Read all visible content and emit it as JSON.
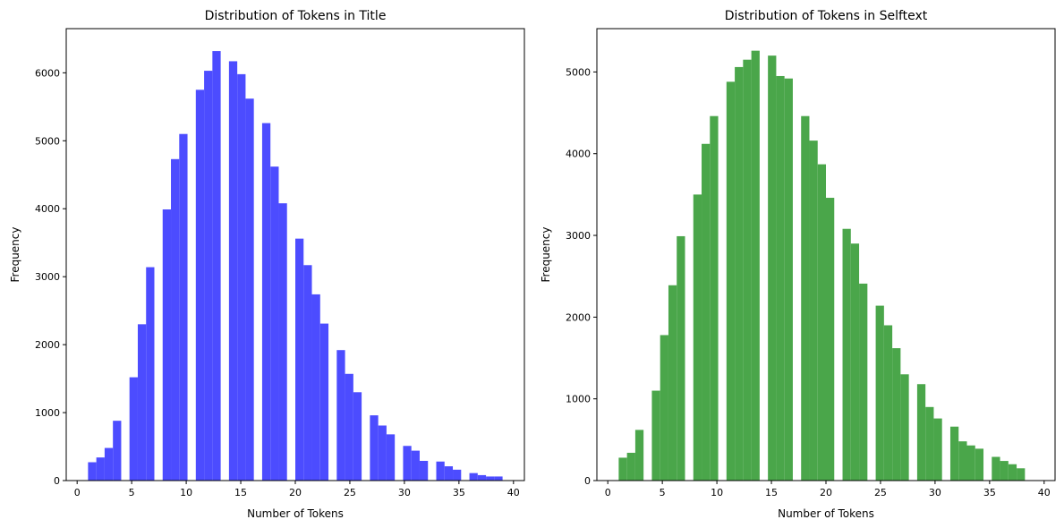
{
  "chart_data": [
    {
      "type": "bar",
      "title": "Distribution of Tokens in Title",
      "xlabel": "Number of Tokens",
      "ylabel": "Frequency",
      "xlim": [
        -1,
        41
      ],
      "ylim": [
        0,
        6650
      ],
      "xticks": [
        0,
        5,
        10,
        15,
        20,
        25,
        30,
        35,
        40
      ],
      "yticks": [
        0,
        1000,
        2000,
        3000,
        4000,
        5000,
        6000
      ],
      "grid": false,
      "color": "#4c4cff",
      "bin_start": 1,
      "bin_width": 0.76,
      "values": [
        270,
        340,
        480,
        880,
        0,
        1520,
        2300,
        3140,
        0,
        3990,
        4730,
        5100,
        0,
        5750,
        6030,
        6320,
        0,
        6170,
        5980,
        5620,
        0,
        5260,
        4620,
        4080,
        0,
        3560,
        3170,
        2740,
        2310,
        0,
        1920,
        1570,
        1300,
        0,
        960,
        810,
        680,
        0,
        510,
        440,
        290,
        0,
        280,
        210,
        160,
        0,
        110,
        80,
        60,
        60
      ]
    },
    {
      "type": "bar",
      "title": "Distribution of Tokens in Selftext",
      "xlabel": "Number of Tokens",
      "ylabel": "Frequency",
      "xlim": [
        -1,
        41
      ],
      "ylim": [
        0,
        5530
      ],
      "xticks": [
        0,
        5,
        10,
        15,
        20,
        25,
        30,
        35,
        40
      ],
      "yticks": [
        0,
        1000,
        2000,
        3000,
        4000,
        5000
      ],
      "grid": false,
      "color": "#4aa64a",
      "bin_start": 1,
      "bin_width": 0.76,
      "values": [
        280,
        340,
        620,
        0,
        1100,
        1780,
        2390,
        2990,
        0,
        3500,
        4120,
        4460,
        0,
        4880,
        5060,
        5150,
        5260,
        0,
        5200,
        4950,
        4920,
        0,
        4460,
        4160,
        3870,
        3460,
        0,
        3080,
        2900,
        2410,
        0,
        2140,
        1900,
        1620,
        1300,
        0,
        1180,
        900,
        760,
        0,
        660,
        480,
        430,
        390,
        0,
        290,
        240,
        200,
        150
      ]
    }
  ]
}
